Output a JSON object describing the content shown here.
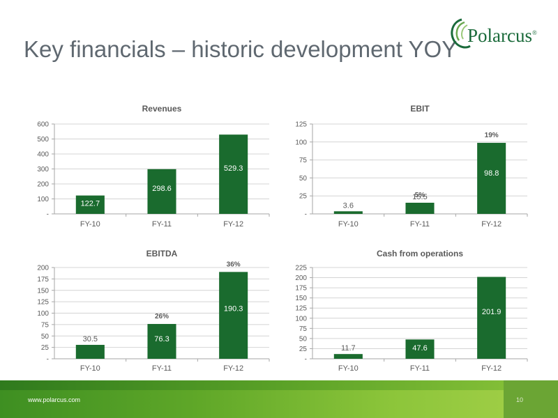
{
  "slide": {
    "title": "Key financials – historic development YOY",
    "logo_text": "Polarcus",
    "logo_reg": "®",
    "url": "www.polarcus.com",
    "page_number": "10"
  },
  "colors": {
    "bar": "#1a6b2e",
    "axis": "#a6a6a6",
    "grid": "#d4d4d4",
    "text": "#595959",
    "title_text": "#5f6870"
  },
  "chart_data": [
    {
      "type": "bar",
      "title": "Revenues",
      "categories": [
        "FY-10",
        "FY-11",
        "FY-12"
      ],
      "values": [
        122.7,
        298.6,
        529.3
      ],
      "value_labels": [
        "122.7",
        "298.6",
        "529.3"
      ],
      "margins": [],
      "ylim": [
        0,
        600
      ],
      "yticks": [
        0,
        100,
        200,
        300,
        400,
        500,
        600
      ],
      "ytick_labels": [
        "-",
        "100",
        "200",
        "300",
        "400",
        "500",
        "600"
      ],
      "grid": true,
      "xlabel": "",
      "ylabel": ""
    },
    {
      "type": "bar",
      "title": "EBIT",
      "categories": [
        "FY-10",
        "FY-11",
        "FY-12"
      ],
      "values": [
        3.6,
        15.5,
        98.8
      ],
      "value_labels": [
        "3.6",
        "15.5",
        "98.8"
      ],
      "margins": [
        "",
        "5%",
        "19%"
      ],
      "ylim": [
        0,
        125
      ],
      "yticks": [
        0,
        25,
        50,
        75,
        100,
        125
      ],
      "ytick_labels": [
        "-",
        "25",
        "50",
        "75",
        "100",
        "125"
      ],
      "grid": true,
      "xlabel": "",
      "ylabel": ""
    },
    {
      "type": "bar",
      "title": "EBITDA",
      "categories": [
        "FY-10",
        "FY-11",
        "FY-12"
      ],
      "values": [
        30.5,
        76.3,
        190.3
      ],
      "value_labels": [
        "30.5",
        "76.3",
        "190.3"
      ],
      "margins": [
        "",
        "26%",
        "36%"
      ],
      "ylim": [
        0,
        200
      ],
      "yticks": [
        0,
        25,
        50,
        75,
        100,
        125,
        150,
        175,
        200
      ],
      "ytick_labels": [
        "-",
        "25",
        "50",
        "75",
        "100",
        "125",
        "150",
        "175",
        "200"
      ],
      "grid": true,
      "xlabel": "",
      "ylabel": ""
    },
    {
      "type": "bar",
      "title": "Cash from operations",
      "categories": [
        "FY-10",
        "FY-11",
        "FY-12"
      ],
      "values": [
        11.7,
        47.6,
        201.9
      ],
      "value_labels": [
        "11.7",
        "47.6",
        "201.9"
      ],
      "margins": [],
      "ylim": [
        0,
        225
      ],
      "yticks": [
        0,
        25,
        50,
        75,
        100,
        125,
        150,
        175,
        200,
        225
      ],
      "ytick_labels": [
        "-",
        "25",
        "50",
        "75",
        "100",
        "125",
        "150",
        "175",
        "200",
        "225"
      ],
      "grid": true,
      "xlabel": "",
      "ylabel": ""
    }
  ]
}
